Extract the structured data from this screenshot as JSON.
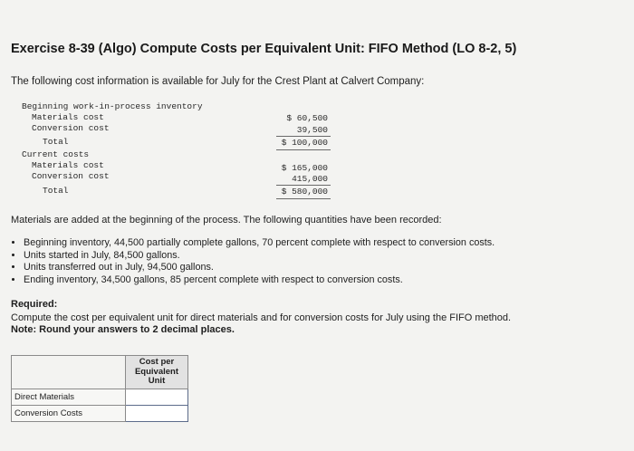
{
  "title": "Exercise 8-39 (Algo) Compute Costs per Equivalent Unit: FIFO Method (LO 8-2, 5)",
  "intro": "The following cost information is available for July for the Crest Plant at Calvert Company:",
  "cost_table": {
    "beginning_heading": "Beginning work-in-process inventory",
    "beginning_materials_label": "Materials cost",
    "beginning_materials_value": "$ 60,500",
    "beginning_conversion_label": "Conversion cost",
    "beginning_conversion_value": "39,500",
    "beginning_total_label": "Total",
    "beginning_total_value": "$ 100,000",
    "current_heading": "Current costs",
    "current_materials_label": "Materials cost",
    "current_materials_value": "$ 165,000",
    "current_conversion_label": "Conversion cost",
    "current_conversion_value": "415,000",
    "current_total_label": "Total",
    "current_total_value": "$ 580,000"
  },
  "materials_note": "Materials are added at the beginning of the process. The following quantities have been recorded:",
  "bullets": [
    "Beginning inventory, 44,500 partially complete gallons, 70 percent complete with respect to conversion costs.",
    "Units started in July, 84,500 gallons.",
    "Units transferred out in July, 94,500 gallons.",
    "Ending inventory, 34,500 gallons, 85 percent complete with respect to conversion costs."
  ],
  "required_heading": "Required:",
  "required_text": "Compute the cost per equivalent unit for direct materials and for conversion costs for July using the FIFO method.",
  "note_text": "Note: Round your answers to 2 decimal places.",
  "answer_table": {
    "header_line1": "Cost per",
    "header_line2": "Equivalent",
    "header_line3": "Unit",
    "rows": [
      {
        "label": "Direct Materials",
        "value": ""
      },
      {
        "label": "Conversion Costs",
        "value": ""
      }
    ]
  }
}
